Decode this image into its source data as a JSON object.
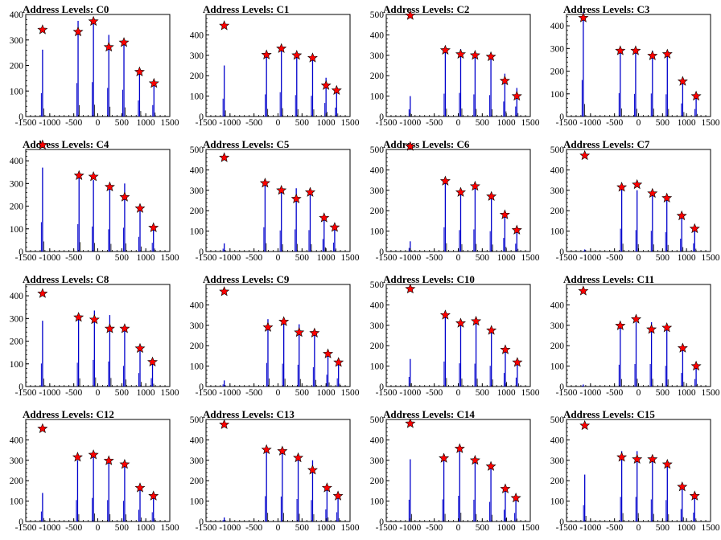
{
  "chart_data": [
    {
      "title": "Address Levels: C0",
      "type": "bar",
      "xlim": [
        -1500,
        1500
      ],
      "ylim": [
        0,
        400
      ],
      "yticks": [
        0,
        100,
        200,
        300,
        400
      ],
      "xticks": [
        -1500,
        -1000,
        -500,
        0,
        500,
        1000,
        1500
      ],
      "peaks": [
        {
          "x": -1150,
          "y": 340,
          "bar": 262
        },
        {
          "x": -410,
          "y": 332,
          "bar": 375
        },
        {
          "x": -90,
          "y": 373,
          "bar": 385
        },
        {
          "x": 230,
          "y": 272,
          "bar": 320
        },
        {
          "x": 545,
          "y": 290,
          "bar": 300
        },
        {
          "x": 870,
          "y": 175,
          "bar": 180
        },
        {
          "x": 1170,
          "y": 130,
          "bar": 128
        }
      ]
    },
    {
      "title": "Address Levels: C1",
      "type": "bar",
      "xlim": [
        -1500,
        1500
      ],
      "ylim": [
        0,
        500
      ],
      "yticks": [
        0,
        100,
        200,
        300,
        400
      ],
      "xticks": [
        -1500,
        -1000,
        -500,
        0,
        500,
        1000,
        1500
      ],
      "peaks": [
        {
          "x": -1120,
          "y": 445,
          "bar": 250
        },
        {
          "x": -240,
          "y": 302,
          "bar": 310
        },
        {
          "x": 70,
          "y": 333,
          "bar": 340
        },
        {
          "x": 390,
          "y": 300,
          "bar": 300
        },
        {
          "x": 720,
          "y": 287,
          "bar": 290
        },
        {
          "x": 1000,
          "y": 152,
          "bar": 190
        },
        {
          "x": 1220,
          "y": 128,
          "bar": 125
        }
      ]
    },
    {
      "title": "Address Levels: C2",
      "type": "bar",
      "xlim": [
        -1500,
        1500
      ],
      "ylim": [
        0,
        500
      ],
      "yticks": [
        0,
        100,
        200,
        300,
        400,
        500
      ],
      "xticks": [
        -1500,
        -1000,
        -500,
        0,
        500,
        1000,
        1500
      ],
      "peaks": [
        {
          "x": -1000,
          "y": 495,
          "bar": 100
        },
        {
          "x": -270,
          "y": 325,
          "bar": 320
        },
        {
          "x": 50,
          "y": 305,
          "bar": 330
        },
        {
          "x": 350,
          "y": 300,
          "bar": 310
        },
        {
          "x": 680,
          "y": 293,
          "bar": 300
        },
        {
          "x": 970,
          "y": 175,
          "bar": 210
        },
        {
          "x": 1220,
          "y": 100,
          "bar": 140
        }
      ]
    },
    {
      "title": "Address Levels: C3",
      "type": "bar",
      "xlim": [
        -1500,
        1500
      ],
      "ylim": [
        0,
        450
      ],
      "yticks": [
        0,
        100,
        200,
        300,
        400
      ],
      "xticks": [
        -1500,
        -1000,
        -500,
        0,
        500,
        1000,
        1500
      ],
      "peaks": [
        {
          "x": -1150,
          "y": 435,
          "bar": 460
        },
        {
          "x": -380,
          "y": 290,
          "bar": 295
        },
        {
          "x": -60,
          "y": 290,
          "bar": 285
        },
        {
          "x": 290,
          "y": 268,
          "bar": 290
        },
        {
          "x": 600,
          "y": 275,
          "bar": 280
        },
        {
          "x": 920,
          "y": 155,
          "bar": 165
        },
        {
          "x": 1200,
          "y": 90,
          "bar": 95
        }
      ]
    },
    {
      "title": "Address Levels: C4",
      "type": "bar",
      "xlim": [
        -1500,
        1500
      ],
      "ylim": [
        0,
        450
      ],
      "yticks": [
        0,
        100,
        200,
        300,
        400
      ],
      "xticks": [
        -1500,
        -1000,
        -500,
        0,
        500,
        1000,
        1500
      ],
      "peaks": [
        {
          "x": -1150,
          "y": 470,
          "bar": 370
        },
        {
          "x": -390,
          "y": 335,
          "bar": 345
        },
        {
          "x": -90,
          "y": 330,
          "bar": 315
        },
        {
          "x": 250,
          "y": 285,
          "bar": 280
        },
        {
          "x": 560,
          "y": 240,
          "bar": 300
        },
        {
          "x": 880,
          "y": 190,
          "bar": 185
        },
        {
          "x": 1160,
          "y": 105,
          "bar": 110
        }
      ]
    },
    {
      "title": "Address Levels: C5",
      "type": "bar",
      "xlim": [
        -1500,
        1500
      ],
      "ylim": [
        0,
        500
      ],
      "yticks": [
        0,
        100,
        200,
        300,
        400,
        500
      ],
      "xticks": [
        -1500,
        -1000,
        -500,
        0,
        500,
        1000,
        1500
      ],
      "peaks": [
        {
          "x": -1120,
          "y": 460,
          "bar": 40
        },
        {
          "x": -270,
          "y": 335,
          "bar": 340
        },
        {
          "x": 70,
          "y": 300,
          "bar": 295
        },
        {
          "x": 380,
          "y": 258,
          "bar": 310
        },
        {
          "x": 670,
          "y": 290,
          "bar": 300
        },
        {
          "x": 960,
          "y": 165,
          "bar": 175
        },
        {
          "x": 1180,
          "y": 118,
          "bar": 125
        }
      ]
    },
    {
      "title": "Address Levels: C6",
      "type": "bar",
      "xlim": [
        -1500,
        1500
      ],
      "ylim": [
        0,
        500
      ],
      "yticks": [
        0,
        100,
        200,
        300,
        400,
        500
      ],
      "xticks": [
        -1500,
        -1000,
        -500,
        0,
        500,
        1000,
        1500
      ],
      "peaks": [
        {
          "x": -1000,
          "y": 515,
          "bar": 50
        },
        {
          "x": -270,
          "y": 345,
          "bar": 340
        },
        {
          "x": 50,
          "y": 290,
          "bar": 300
        },
        {
          "x": 350,
          "y": 320,
          "bar": 310
        },
        {
          "x": 690,
          "y": 270,
          "bar": 285
        },
        {
          "x": 970,
          "y": 180,
          "bar": 190
        },
        {
          "x": 1220,
          "y": 105,
          "bar": 110
        }
      ]
    },
    {
      "title": "Address Levels: C7",
      "type": "bar",
      "xlim": [
        -1500,
        1500
      ],
      "ylim": [
        0,
        500
      ],
      "yticks": [
        0,
        100,
        200,
        300,
        400,
        500
      ],
      "xticks": [
        -1500,
        -1000,
        -500,
        0,
        500,
        1000,
        1500
      ],
      "peaks": [
        {
          "x": -1120,
          "y": 470,
          "bar": 10
        },
        {
          "x": -350,
          "y": 315,
          "bar": 320
        },
        {
          "x": -30,
          "y": 328,
          "bar": 300
        },
        {
          "x": 290,
          "y": 285,
          "bar": 290
        },
        {
          "x": 590,
          "y": 262,
          "bar": 270
        },
        {
          "x": 900,
          "y": 175,
          "bar": 180
        },
        {
          "x": 1170,
          "y": 112,
          "bar": 115
        }
      ]
    },
    {
      "title": "Address Levels: C8",
      "type": "bar",
      "xlim": [
        -1500,
        1500
      ],
      "ylim": [
        0,
        450
      ],
      "yticks": [
        0,
        100,
        200,
        300,
        400
      ],
      "xticks": [
        -1500,
        -1000,
        -500,
        0,
        500,
        1000,
        1500
      ],
      "peaks": [
        {
          "x": -1150,
          "y": 410,
          "bar": 290
        },
        {
          "x": -400,
          "y": 305,
          "bar": 300
        },
        {
          "x": -70,
          "y": 295,
          "bar": 335
        },
        {
          "x": 250,
          "y": 255,
          "bar": 315
        },
        {
          "x": 560,
          "y": 255,
          "bar": 260
        },
        {
          "x": 880,
          "y": 168,
          "bar": 170
        },
        {
          "x": 1140,
          "y": 108,
          "bar": 105
        }
      ]
    },
    {
      "title": "Address Levels: C9",
      "type": "bar",
      "xlim": [
        -1500,
        1500
      ],
      "ylim": [
        0,
        500
      ],
      "yticks": [
        0,
        100,
        200,
        300,
        400
      ],
      "xticks": [
        -1500,
        -1000,
        -500,
        0,
        500,
        1000,
        1500
      ],
      "peaks": [
        {
          "x": -1120,
          "y": 465,
          "bar": 30
        },
        {
          "x": -210,
          "y": 290,
          "bar": 330
        },
        {
          "x": 120,
          "y": 318,
          "bar": 320
        },
        {
          "x": 440,
          "y": 265,
          "bar": 305
        },
        {
          "x": 760,
          "y": 262,
          "bar": 270
        },
        {
          "x": 1040,
          "y": 160,
          "bar": 165
        },
        {
          "x": 1260,
          "y": 118,
          "bar": 115
        }
      ]
    },
    {
      "title": "Address Levels: C10",
      "type": "bar",
      "xlim": [
        -1500,
        1500
      ],
      "ylim": [
        0,
        500
      ],
      "yticks": [
        0,
        100,
        200,
        300,
        400,
        500
      ],
      "xticks": [
        -1500,
        -1000,
        -500,
        0,
        500,
        1000,
        1500
      ],
      "peaks": [
        {
          "x": -1000,
          "y": 478,
          "bar": 135
        },
        {
          "x": -270,
          "y": 350,
          "bar": 350
        },
        {
          "x": 50,
          "y": 310,
          "bar": 325
        },
        {
          "x": 370,
          "y": 320,
          "bar": 320
        },
        {
          "x": 690,
          "y": 275,
          "bar": 290
        },
        {
          "x": 980,
          "y": 180,
          "bar": 190
        },
        {
          "x": 1230,
          "y": 118,
          "bar": 125
        }
      ]
    },
    {
      "title": "Address Levels: C11",
      "type": "bar",
      "xlim": [
        -1500,
        1500
      ],
      "ylim": [
        0,
        500
      ],
      "yticks": [
        0,
        100,
        200,
        300,
        400
      ],
      "xticks": [
        -1500,
        -1000,
        -500,
        0,
        500,
        1000,
        1500
      ],
      "peaks": [
        {
          "x": -1150,
          "y": 468,
          "bar": 10
        },
        {
          "x": -380,
          "y": 298,
          "bar": 305
        },
        {
          "x": -50,
          "y": 330,
          "bar": 315
        },
        {
          "x": 270,
          "y": 280,
          "bar": 315
        },
        {
          "x": 590,
          "y": 288,
          "bar": 290
        },
        {
          "x": 920,
          "y": 188,
          "bar": 190
        },
        {
          "x": 1200,
          "y": 100,
          "bar": 105
        }
      ]
    },
    {
      "title": "Address Levels: C12",
      "type": "bar",
      "xlim": [
        -1500,
        1500
      ],
      "ylim": [
        0,
        500
      ],
      "yticks": [
        0,
        100,
        200,
        300,
        400
      ],
      "xticks": [
        -1500,
        -1000,
        -500,
        0,
        500,
        1000,
        1500
      ],
      "peaks": [
        {
          "x": -1150,
          "y": 455,
          "bar": 140
        },
        {
          "x": -420,
          "y": 315,
          "bar": 300
        },
        {
          "x": -90,
          "y": 327,
          "bar": 330
        },
        {
          "x": 230,
          "y": 298,
          "bar": 300
        },
        {
          "x": 560,
          "y": 280,
          "bar": 290
        },
        {
          "x": 880,
          "y": 165,
          "bar": 165
        },
        {
          "x": 1160,
          "y": 125,
          "bar": 130
        }
      ]
    },
    {
      "title": "Address Levels: C13",
      "type": "bar",
      "xlim": [
        -1500,
        1500
      ],
      "ylim": [
        0,
        500
      ],
      "yticks": [
        0,
        100,
        200,
        300,
        400,
        500
      ],
      "xticks": [
        -1500,
        -1000,
        -500,
        0,
        500,
        1000,
        1500
      ],
      "peaks": [
        {
          "x": -1120,
          "y": 475,
          "bar": 20
        },
        {
          "x": -240,
          "y": 352,
          "bar": 355
        },
        {
          "x": 90,
          "y": 345,
          "bar": 350
        },
        {
          "x": 420,
          "y": 312,
          "bar": 315
        },
        {
          "x": 720,
          "y": 252,
          "bar": 300
        },
        {
          "x": 1020,
          "y": 165,
          "bar": 170
        },
        {
          "x": 1250,
          "y": 125,
          "bar": 130
        }
      ]
    },
    {
      "title": "Address Levels: C14",
      "type": "bar",
      "xlim": [
        -1500,
        1500
      ],
      "ylim": [
        0,
        500
      ],
      "yticks": [
        0,
        100,
        200,
        300,
        400,
        500
      ],
      "xticks": [
        -1500,
        -1000,
        -500,
        0,
        500,
        1000,
        1500
      ],
      "peaks": [
        {
          "x": -1000,
          "y": 480,
          "bar": 305
        },
        {
          "x": -300,
          "y": 310,
          "bar": 310
        },
        {
          "x": 30,
          "y": 357,
          "bar": 360
        },
        {
          "x": 350,
          "y": 300,
          "bar": 305
        },
        {
          "x": 680,
          "y": 270,
          "bar": 275
        },
        {
          "x": 980,
          "y": 160,
          "bar": 165
        },
        {
          "x": 1200,
          "y": 115,
          "bar": 120
        }
      ]
    },
    {
      "title": "Address Levels: C15",
      "type": "bar",
      "xlim": [
        -1500,
        1500
      ],
      "ylim": [
        0,
        500
      ],
      "yticks": [
        0,
        100,
        200,
        300,
        400,
        500
      ],
      "xticks": [
        -1500,
        -1000,
        -500,
        0,
        500,
        1000,
        1500
      ],
      "peaks": [
        {
          "x": -1120,
          "y": 470,
          "bar": 230
        },
        {
          "x": -350,
          "y": 315,
          "bar": 345
        },
        {
          "x": -30,
          "y": 305,
          "bar": 345
        },
        {
          "x": 290,
          "y": 305,
          "bar": 310
        },
        {
          "x": 600,
          "y": 280,
          "bar": 300
        },
        {
          "x": 910,
          "y": 170,
          "bar": 175
        },
        {
          "x": 1170,
          "y": 125,
          "bar": 125
        }
      ]
    }
  ],
  "colors": {
    "bar": "#0000cc",
    "marker": "#ff0000",
    "marker_edge": "#000000",
    "axis": "#000000"
  }
}
